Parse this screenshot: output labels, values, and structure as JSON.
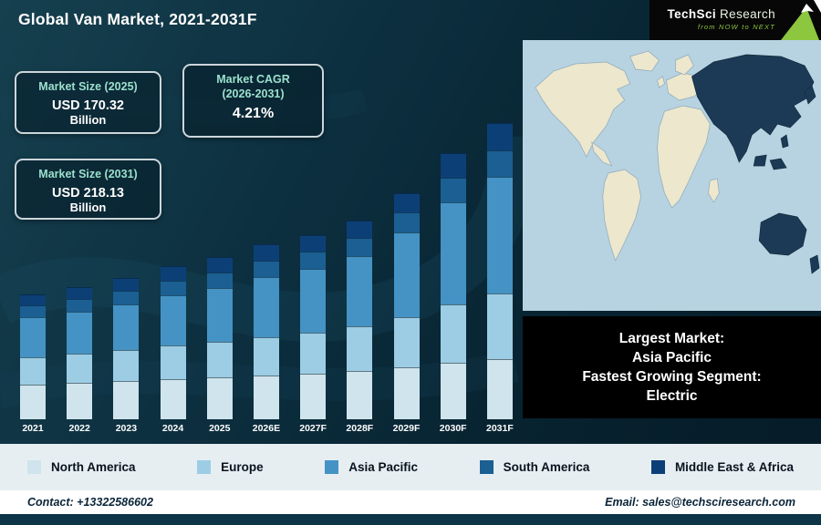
{
  "header": {
    "title": "Global Van Market, 2021-2031F",
    "logo": {
      "brand_tech": "TechSci",
      "brand_research": "Research",
      "tagline": "from NOW to NEXT",
      "accent_color": "#8dc63f"
    }
  },
  "info_boxes": [
    {
      "label": "Market Size (2025)",
      "value": "USD 170.32",
      "unit": "Billion"
    },
    {
      "label_line1": "Market CAGR",
      "label_line2": "(2026-2031)",
      "value": "4.21%"
    },
    {
      "label": "Market Size (2031)",
      "value": "USD 218.13",
      "unit": "Billion"
    }
  ],
  "chart_data": {
    "type": "bar",
    "stacked": true,
    "title": "Global Van Market, 2021-2031F",
    "xlabel": "",
    "ylabel": "",
    "value_axis_visible": false,
    "note": "Stacked bar heights estimated in relative units from the illustration; no value axis is shown.",
    "categories": [
      "2021",
      "2022",
      "2023",
      "2024",
      "2025",
      "2026E",
      "2027F",
      "2028F",
      "2029F",
      "2030F",
      "2031F"
    ],
    "series": [
      {
        "name": "North America",
        "color": "#cfe4ec",
        "values": [
          38,
          40,
          42,
          44,
          46,
          48,
          50,
          53,
          57,
          62,
          66
        ]
      },
      {
        "name": "Europe",
        "color": "#9ccde4",
        "values": [
          30,
          32,
          34,
          37,
          39,
          42,
          45,
          49,
          55,
          64,
          72
        ]
      },
      {
        "name": "Asia Pacific",
        "color": "#4493c4",
        "values": [
          44,
          46,
          50,
          55,
          59,
          66,
          70,
          77,
          93,
          112,
          128
        ]
      },
      {
        "name": "South America",
        "color": "#1b5f93",
        "values": [
          13,
          14,
          15,
          16,
          17,
          18,
          19,
          20,
          22,
          27,
          29
        ]
      },
      {
        "name": "Middle East & Africa",
        "color": "#0d3f77",
        "values": [
          12,
          13,
          14,
          16,
          17,
          18,
          18,
          19,
          21,
          27,
          30
        ]
      }
    ],
    "legend_position": "bottom",
    "annotations": {
      "market_size_2025": "USD 170.32 Billion",
      "market_size_2031": "USD 218.13 Billion",
      "cagr_2026_2031": "4.21%"
    }
  },
  "map": {
    "ocean_color": "#b7d3e2",
    "land_color": "#ece7cd",
    "highlight_color": "#1c3a55",
    "highlighted_region": "Asia Pacific"
  },
  "callout": {
    "lines": [
      "Largest Market:",
      "Asia Pacific",
      "Fastest Growing Segment:",
      "Electric"
    ]
  },
  "footer": {
    "contact": "Contact: +13322586602",
    "email": "Email: sales@techsciresearch.com"
  }
}
